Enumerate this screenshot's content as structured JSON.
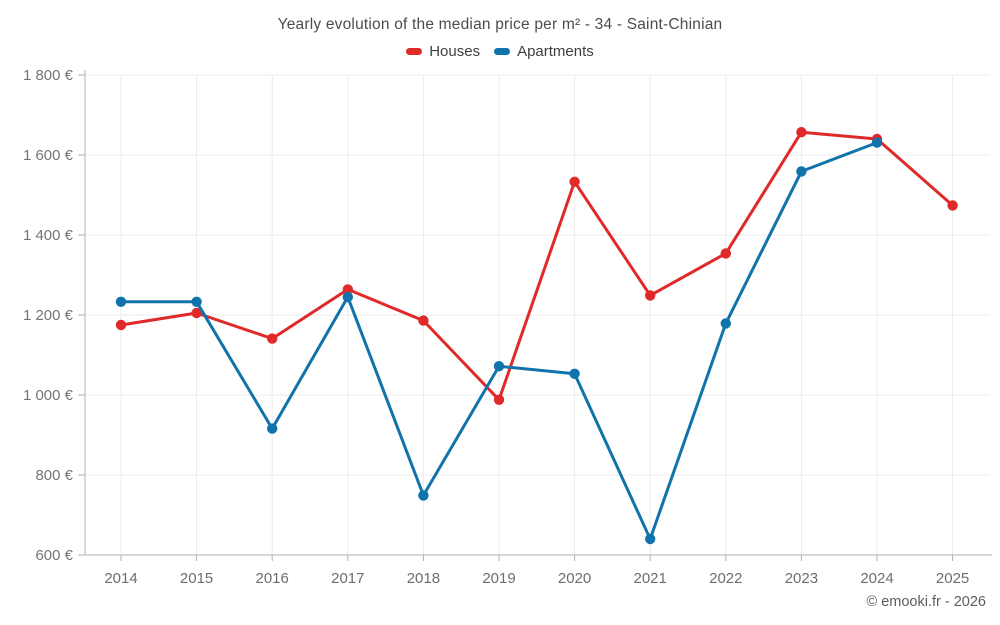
{
  "chart_data": {
    "type": "line",
    "title": "Yearly evolution of the median price per m² - 34 - Saint-Chinian",
    "categories": [
      "2014",
      "2015",
      "2016",
      "2017",
      "2018",
      "2019",
      "2020",
      "2021",
      "2022",
      "2023",
      "2024",
      "2025"
    ],
    "series": [
      {
        "name": "Houses",
        "color": "#e02a2a",
        "values": [
          1175,
          1205,
          1141,
          1264,
          1186,
          988,
          1533,
          1249,
          1354,
          1657,
          1640,
          1474
        ]
      },
      {
        "name": "Apartments",
        "color": "#1173ab",
        "values": [
          1233,
          1233,
          916,
          1245,
          749,
          1072,
          1053,
          640,
          1179,
          1559,
          1631,
          null
        ]
      }
    ],
    "ylim": [
      600,
      1800
    ],
    "yticks": [
      {
        "value": 600,
        "label": "600 €"
      },
      {
        "value": 800,
        "label": "800 €"
      },
      {
        "value": 1000,
        "label": "1 000 €"
      },
      {
        "value": 1200,
        "label": "1 200 €"
      },
      {
        "value": 1400,
        "label": "1 400 €"
      },
      {
        "value": 1600,
        "label": "1 600 €"
      },
      {
        "value": 1800,
        "label": "1 800 €"
      }
    ],
    "grid": true,
    "legend_position": "top",
    "xlabel": "",
    "ylabel": ""
  },
  "footer": {
    "copyright": "© emooki.fr - 2026"
  }
}
